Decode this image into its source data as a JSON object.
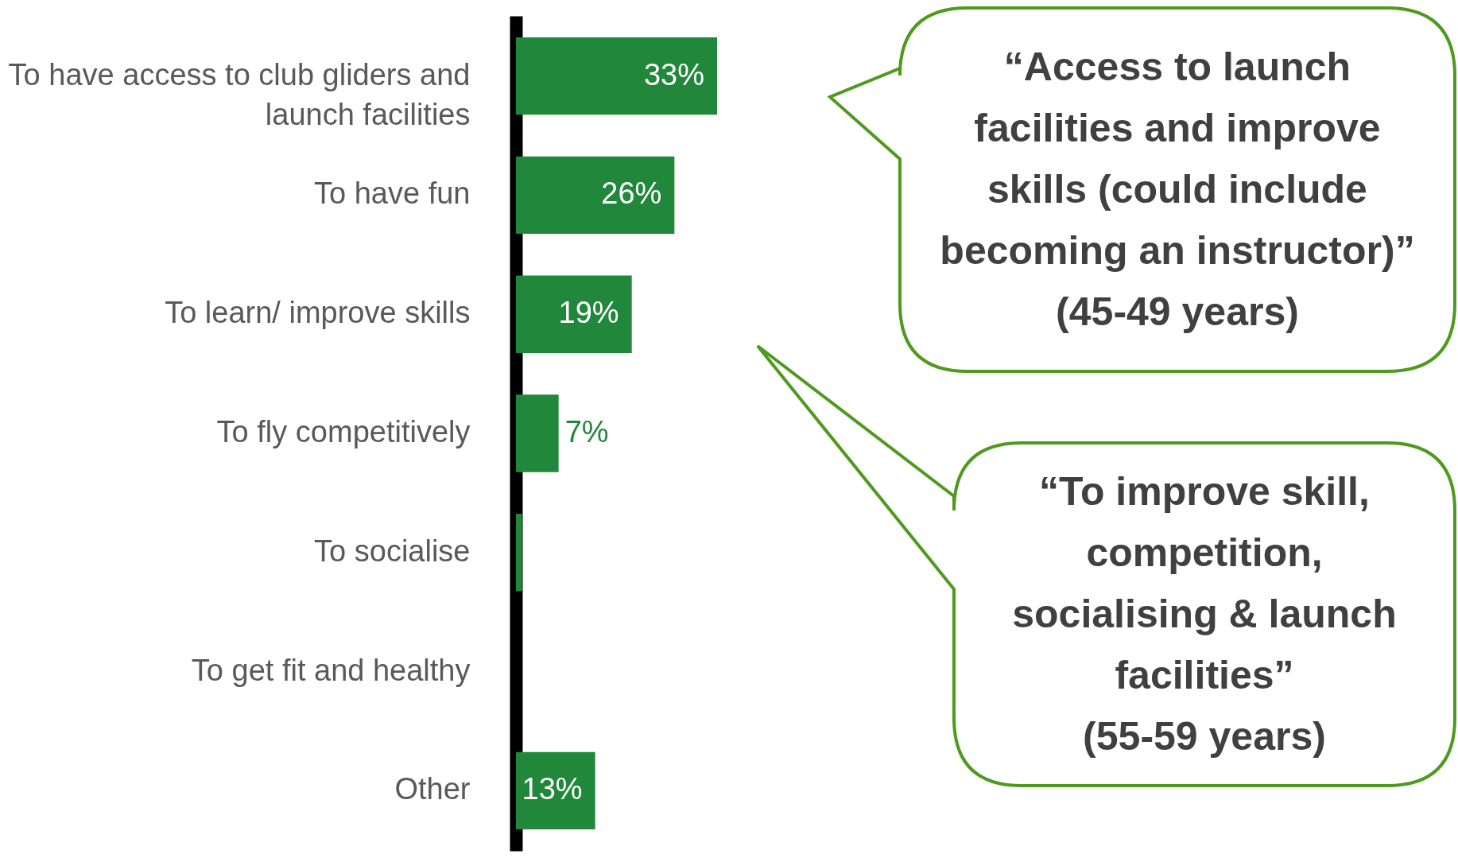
{
  "chart_data": {
    "type": "bar",
    "orientation": "horizontal",
    "categories": [
      "To have access to club gliders and launch facilities",
      "To have fun",
      "To learn/ improve skills",
      "To fly competitively",
      "To socialise",
      "To get fit and healthy",
      "Other"
    ],
    "values": [
      33,
      26,
      19,
      7,
      1,
      0,
      13
    ],
    "value_labels": [
      "33%",
      "26%",
      "19%",
      "7%",
      null,
      null,
      "13%"
    ],
    "color": "#21873a",
    "annotations": [
      "“Access to launch facilities and improve skills (could include becoming an instructor)”\n(45-49 years)",
      "“To improve skill, competition, socialising & launch facilities”\n(55-59 years)"
    ]
  }
}
